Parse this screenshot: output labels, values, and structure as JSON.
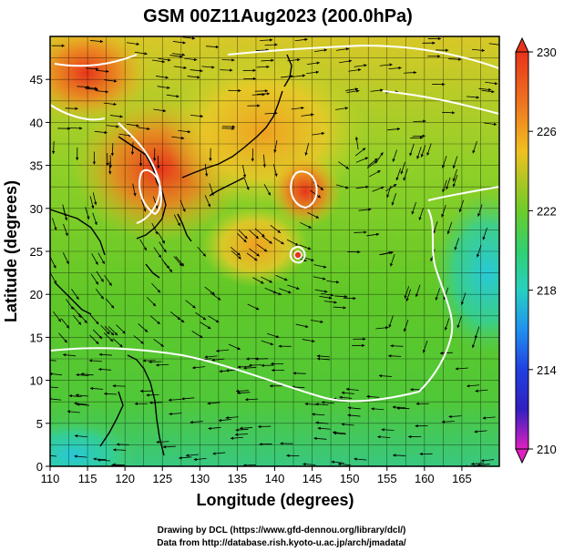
{
  "title": "GSM 00Z11Aug2023 (200.0hPa)",
  "xlabel": "Longitude (degrees)",
  "ylabel": "Latitude  (degrees)",
  "x_ticks": [
    "110",
    "115",
    "120",
    "125",
    "130",
    "135",
    "140",
    "145",
    "150",
    "155",
    "160",
    "165"
  ],
  "y_ticks": [
    "0",
    "5",
    "10",
    "15",
    "20",
    "25",
    "30",
    "35",
    "40",
    "45"
  ],
  "colorbar": {
    "ticks": [
      "230",
      "226",
      "222",
      "218",
      "214",
      "210"
    ],
    "min": 210,
    "max": 230
  },
  "credits": {
    "line1": "Drawing by DCL (https://www.gfd-dennou.org/library/dcl/)",
    "line2": "Data from http://database.rish.kyoto-u.ac.jp/arch/jmadata/"
  },
  "map": {
    "lon_range": [
      110,
      170
    ],
    "lat_range": [
      0,
      50
    ],
    "grid": true,
    "field": "temperature-like shaded field with white contour lines and black streamlines",
    "colors": {
      "high": "#e8331a",
      "warm": "#f0a020",
      "mid": "#6ccc2a",
      "cool": "#28d0b0",
      "low_end": "#e020c0"
    }
  }
}
